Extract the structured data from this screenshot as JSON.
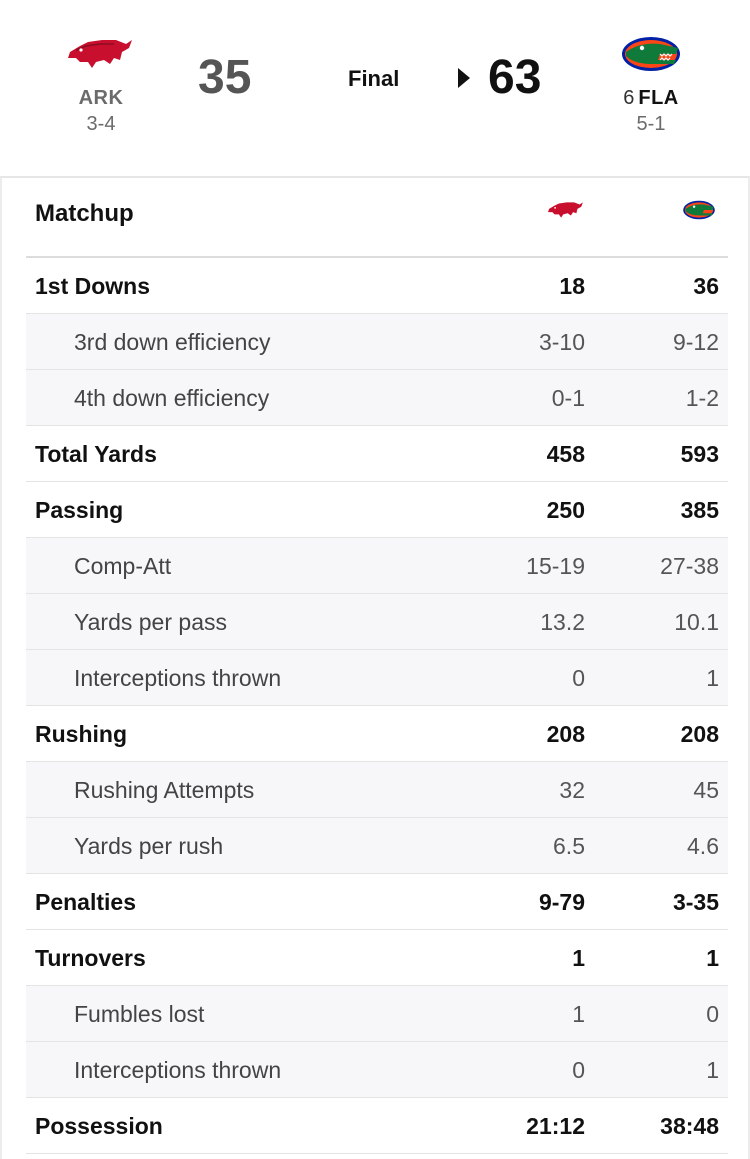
{
  "game": {
    "status": "Final",
    "away": {
      "abbr": "ARK",
      "record": "3-4",
      "score": "35",
      "logo_icon": "razorback-logo",
      "color": "#c8102e"
    },
    "home": {
      "rank": "6",
      "abbr": "FLA",
      "record": "5-1",
      "score": "63",
      "logo_icon": "gator-logo",
      "color": "#0021a5",
      "accent": "#fa4616",
      "winner": true
    }
  },
  "matchup": {
    "title": "Matchup",
    "rows": [
      {
        "label": "1st Downs",
        "away": "18",
        "home": "36",
        "type": "main"
      },
      {
        "label": "3rd down efficiency",
        "away": "3-10",
        "home": "9-12",
        "type": "sub"
      },
      {
        "label": "4th down efficiency",
        "away": "0-1",
        "home": "1-2",
        "type": "sub"
      },
      {
        "label": "Total Yards",
        "away": "458",
        "home": "593",
        "type": "main"
      },
      {
        "label": "Passing",
        "away": "250",
        "home": "385",
        "type": "main"
      },
      {
        "label": "Comp-Att",
        "away": "15-19",
        "home": "27-38",
        "type": "sub"
      },
      {
        "label": "Yards per pass",
        "away": "13.2",
        "home": "10.1",
        "type": "sub"
      },
      {
        "label": "Interceptions thrown",
        "away": "0",
        "home": "1",
        "type": "sub"
      },
      {
        "label": "Rushing",
        "away": "208",
        "home": "208",
        "type": "main"
      },
      {
        "label": "Rushing Attempts",
        "away": "32",
        "home": "45",
        "type": "sub"
      },
      {
        "label": "Yards per rush",
        "away": "6.5",
        "home": "4.6",
        "type": "sub"
      },
      {
        "label": "Penalties",
        "away": "9-79",
        "home": "3-35",
        "type": "main"
      },
      {
        "label": "Turnovers",
        "away": "1",
        "home": "1",
        "type": "main"
      },
      {
        "label": "Fumbles lost",
        "away": "1",
        "home": "0",
        "type": "sub"
      },
      {
        "label": "Interceptions thrown",
        "away": "0",
        "home": "1",
        "type": "sub"
      },
      {
        "label": "Possession",
        "away": "21:12",
        "home": "38:48",
        "type": "main"
      }
    ]
  }
}
